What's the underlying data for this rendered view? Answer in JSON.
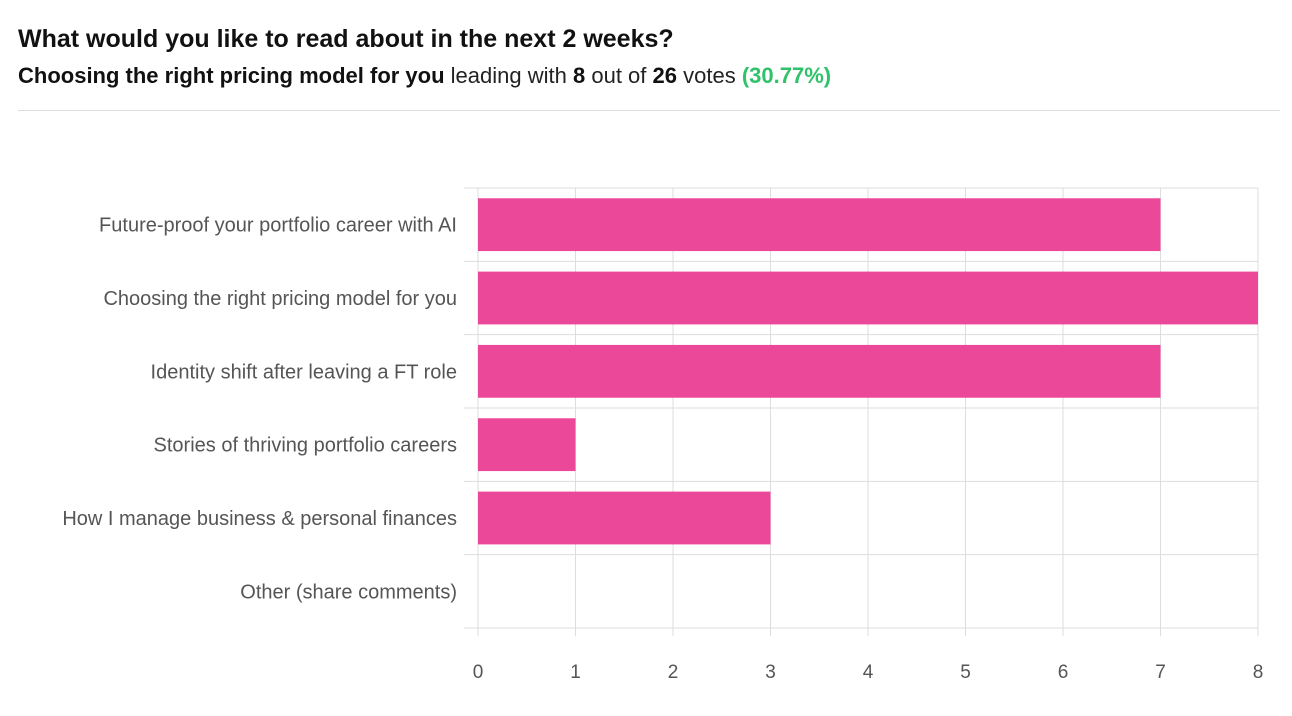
{
  "header": {
    "title": "What would you like to read about in the next 2 weeks?",
    "leader_name": "Choosing the right pricing model for you",
    "leading_with_text": "leading with",
    "leader_votes": "8",
    "out_of_text": "out of",
    "total_votes": "26",
    "votes_text": "votes",
    "leader_percent": "(30.77%)"
  },
  "colors": {
    "bar": "#ec4899",
    "grid": "#dddddd",
    "axis_text": "#555555",
    "percent_green": "#2fc26a"
  },
  "chart_data": {
    "type": "bar",
    "orientation": "horizontal",
    "categories": [
      "Future-proof your portfolio career with AI",
      "Choosing the right pricing model for you",
      "Identity shift after leaving a FT role",
      "Stories of thriving portfolio careers",
      "How I manage business & personal finances",
      "Other (share comments)"
    ],
    "values": [
      7,
      8,
      7,
      1,
      3,
      0
    ],
    "xlim": [
      0,
      8
    ],
    "xticks": [
      "0",
      "1",
      "2",
      "3",
      "4",
      "5",
      "6",
      "7",
      "8"
    ],
    "grid": true,
    "title": "",
    "xlabel": "",
    "ylabel": ""
  }
}
